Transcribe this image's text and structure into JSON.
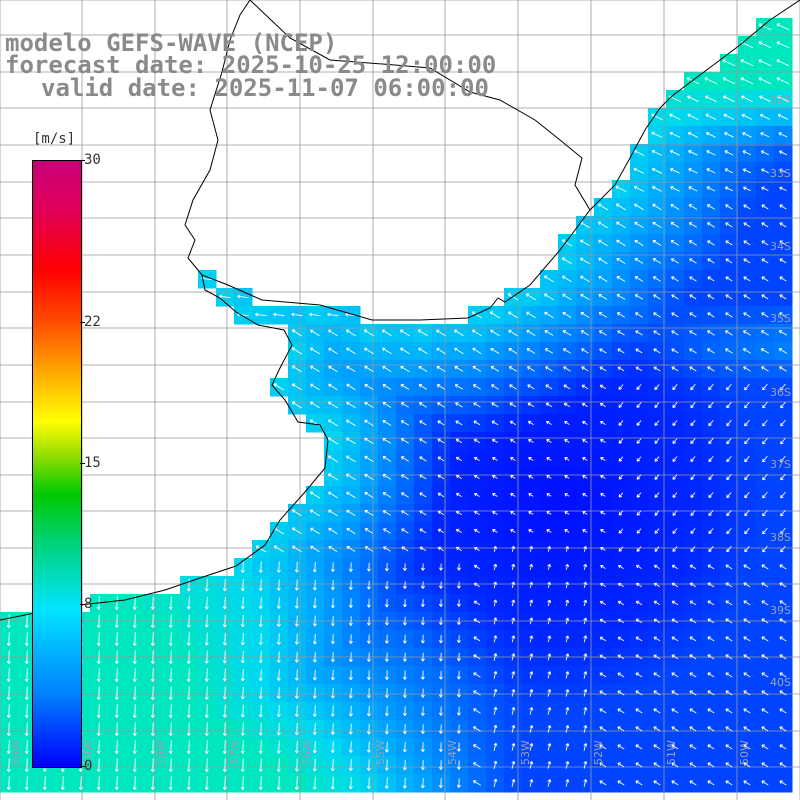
{
  "title": {
    "line1": "modelo GEFS-WAVE (NCEP)",
    "line2": "forecast date: 2025-10-25 12:00:00",
    "line3": "valid date: 2025-11-07 06:00:00"
  },
  "colorbar": {
    "unit": "[m/s]",
    "ticks": [
      {
        "label": "30",
        "value": 30
      },
      {
        "label": "22",
        "value": 22
      },
      {
        "label": "15",
        "value": 15
      },
      {
        "label": "8",
        "value": 8
      },
      {
        "label": "0",
        "value": 0
      }
    ],
    "range": [
      0,
      30
    ]
  },
  "colors": {
    "coastline": "#000000",
    "grid": "#999999",
    "arrow": "#ffffff",
    "land": "#ffffff"
  },
  "map": {
    "variable": "wind speed and direction",
    "latitude_labels": [
      "32S",
      "33S",
      "34S",
      "35S",
      "36S",
      "37S",
      "38S",
      "39S",
      "40S"
    ],
    "longitude_labels": [
      "60W",
      "59W",
      "58W",
      "57W",
      "56W",
      "55W",
      "54W",
      "53W",
      "52W",
      "51W",
      "50W"
    ]
  }
}
